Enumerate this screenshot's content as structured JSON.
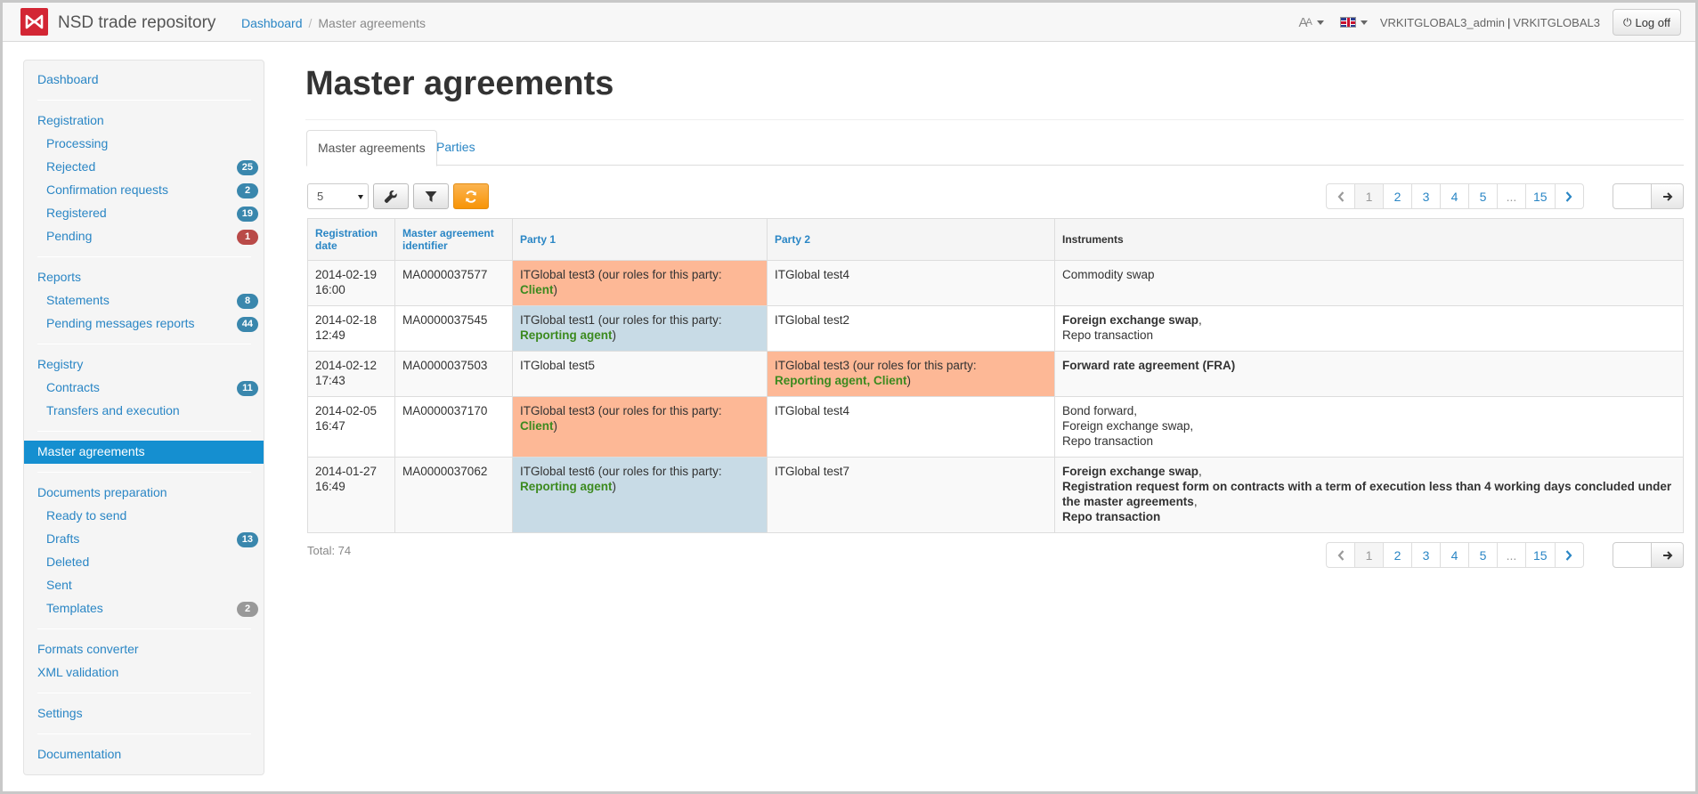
{
  "app": {
    "title": "NSD trade repository",
    "brand_color": "#d32634"
  },
  "breadcrumb": {
    "home": "Dashboard",
    "current": "Master agreements"
  },
  "topbar": {
    "font_switch": "A",
    "font_switch_small": "A",
    "user": "VRKITGLOBAL3_admin",
    "org": "VRKITGLOBAL3",
    "logoff": "Log off"
  },
  "sidebar": {
    "dashboard": "Dashboard",
    "registration": "Registration",
    "processing": "Processing",
    "rejected": "Rejected",
    "rejected_count": "25",
    "confirmation": "Confirmation requests",
    "confirmation_count": "2",
    "registered": "Registered",
    "registered_count": "19",
    "pending": "Pending",
    "pending_count": "1",
    "reports": "Reports",
    "statements": "Statements",
    "statements_count": "8",
    "pending_reports": "Pending messages reports",
    "pending_reports_count": "44",
    "registry": "Registry",
    "contracts": "Contracts",
    "contracts_count": "11",
    "transfers": "Transfers and execution",
    "master_agreements": "Master agreements",
    "docs_prep": "Documents preparation",
    "ready": "Ready to send",
    "drafts": "Drafts",
    "drafts_count": "13",
    "deleted": "Deleted",
    "sent": "Sent",
    "templates": "Templates",
    "templates_count": "2",
    "formats": "Formats converter",
    "xml": "XML validation",
    "settings": "Settings",
    "documentation": "Documentation"
  },
  "main": {
    "title": "Master agreements",
    "tabs": [
      "Master agreements",
      "Parties"
    ],
    "page_size": "5",
    "pager": {
      "pages": [
        "1",
        "2",
        "3",
        "4",
        "5",
        "...",
        "15"
      ],
      "current": "1"
    },
    "total": "Total: 74"
  },
  "table": {
    "headers": [
      "Registration date",
      "Master agreement identifier",
      "Party 1",
      "Party 2",
      "Instruments"
    ],
    "rows": [
      {
        "date": "2014-02-19",
        "time": "16:00",
        "id": "MA0000037577",
        "p1": "ITGlobal test3 (our roles for this party:",
        "p1_role": "Client",
        "p2": "ITGlobal test4",
        "p2_role": "",
        "instr": "Commodity swap"
      },
      {
        "date": "2014-02-18",
        "time": "12:49",
        "id": "MA0000037545",
        "p1": "ITGlobal test1 (our roles for this party:",
        "p1_role": "Reporting agent",
        "p2": "ITGlobal test2",
        "p2_role": "",
        "instr_bold": "Foreign exchange swap",
        "instr2": "Repo transaction"
      },
      {
        "date": "2014-02-12",
        "time": "17:43",
        "id": "MA0000037503",
        "p1": "ITGlobal test5",
        "p1_role": "",
        "p2": "ITGlobal test3 (our roles for this party:",
        "p2_role": "Reporting agent, Client",
        "instr_bold": "Forward rate agreement (FRA)"
      },
      {
        "date": "2014-02-05",
        "time": "16:47",
        "id": "MA0000037170",
        "p1": "ITGlobal test3 (our roles for this party:",
        "p1_role": "Client",
        "p2": "ITGlobal test4",
        "p2_role": "",
        "instr1": "Bond forward",
        "instr2": "Foreign exchange swap",
        "instr3": "Repo transaction"
      },
      {
        "date": "2014-01-27",
        "time": "16:49",
        "id": "MA0000037062",
        "p1": "ITGlobal test6 (our roles for this party:",
        "p1_role": "Reporting agent",
        "p2": "ITGlobal test7",
        "p2_role": "",
        "instr1": "Foreign exchange swap",
        "instr2": "Registration request form on contracts with a term of execution less than 4 working days concluded under the master agreements",
        "instr3": "Repo transaction"
      }
    ]
  }
}
